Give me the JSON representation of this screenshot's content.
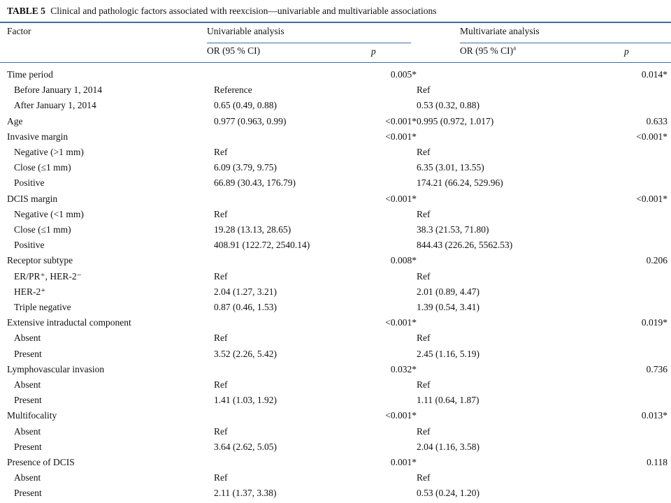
{
  "caption": {
    "label": "TABLE 5",
    "text": "Clinical and pathologic factors associated with reexcision—univariable and multivariable associations"
  },
  "headers": {
    "factor": "Factor",
    "univariable": "Univariable analysis",
    "multivariate": "Multivariate analysis",
    "or_ci": "OR (95 % CI)",
    "or_ci_mv": "OR (95 % CI)",
    "or_ci_mv_sup": "a",
    "p": "p"
  },
  "rows": [
    {
      "factor": "Time period",
      "sub": false,
      "u_or": "",
      "u_p": "0.005*",
      "m_or": "",
      "m_p": "0.014*"
    },
    {
      "factor": "Before January 1, 2014",
      "sub": true,
      "u_or": "Reference",
      "u_p": "",
      "m_or": "Ref",
      "m_p": ""
    },
    {
      "factor": "After January 1, 2014",
      "sub": true,
      "u_or": "0.65 (0.49, 0.88)",
      "u_p": "",
      "m_or": "0.53 (0.32, 0.88)",
      "m_p": ""
    },
    {
      "factor": "Age",
      "sub": false,
      "u_or": "0.977 (0.963, 0.99)",
      "u_p": "<0.001*",
      "m_or": "0.995 (0.972, 1.017)",
      "m_p": "0.633"
    },
    {
      "factor": "Invasive margin",
      "sub": false,
      "u_or": "",
      "u_p": "<0.001*",
      "m_or": "",
      "m_p": "<0.001*"
    },
    {
      "factor": "Negative (>1 mm)",
      "sub": true,
      "u_or": "Ref",
      "u_p": "",
      "m_or": "Ref",
      "m_p": ""
    },
    {
      "factor": "Close (≤1 mm)",
      "sub": true,
      "u_or": "6.09 (3.79, 9.75)",
      "u_p": "",
      "m_or": "6.35 (3.01, 13.55)",
      "m_p": ""
    },
    {
      "factor": "Positive",
      "sub": true,
      "u_or": "66.89 (30.43, 176.79)",
      "u_p": "",
      "m_or": "174.21 (66.24, 529.96)",
      "m_p": ""
    },
    {
      "factor": "DCIS margin",
      "sub": false,
      "u_or": "",
      "u_p": "<0.001*",
      "m_or": "",
      "m_p": "<0.001*"
    },
    {
      "factor": "Negative (<1 mm)",
      "sub": true,
      "u_or": "Ref",
      "u_p": "",
      "m_or": "Ref",
      "m_p": ""
    },
    {
      "factor": "Close (≤1 mm)",
      "sub": true,
      "u_or": "19.28 (13.13, 28.65)",
      "u_p": "",
      "m_or": "38.3 (21.53, 71.80)",
      "m_p": ""
    },
    {
      "factor": "Positive",
      "sub": true,
      "u_or": "408.91 (122.72, 2540.14)",
      "u_p": "",
      "m_or": "844.43 (226.26, 5562.53)",
      "m_p": ""
    },
    {
      "factor": "Receptor subtype",
      "sub": false,
      "u_or": "",
      "u_p": "0.008*",
      "m_or": "",
      "m_p": "0.206"
    },
    {
      "factor": "ER/PR⁺, HER-2⁻",
      "sub": true,
      "u_or": "Ref",
      "u_p": "",
      "m_or": "Ref",
      "m_p": ""
    },
    {
      "factor": "HER-2⁺",
      "sub": true,
      "u_or": "2.04 (1.27, 3.21)",
      "u_p": "",
      "m_or": "2.01 (0.89, 4.47)",
      "m_p": ""
    },
    {
      "factor": "Triple negative",
      "sub": true,
      "u_or": "0.87 (0.46, 1.53)",
      "u_p": "",
      "m_or": "1.39 (0.54, 3.41)",
      "m_p": ""
    },
    {
      "factor": "Extensive intraductal component",
      "sub": false,
      "u_or": "",
      "u_p": "<0.001*",
      "m_or": "",
      "m_p": "0.019*"
    },
    {
      "factor": "Absent",
      "sub": true,
      "u_or": "Ref",
      "u_p": "",
      "m_or": "Ref",
      "m_p": ""
    },
    {
      "factor": "Present",
      "sub": true,
      "u_or": "3.52 (2.26, 5.42)",
      "u_p": "",
      "m_or": "2.45 (1.16, 5.19)",
      "m_p": ""
    },
    {
      "factor": "Lymphovascular invasion",
      "sub": false,
      "u_or": "",
      "u_p": "0.032*",
      "m_or": "",
      "m_p": "0.736"
    },
    {
      "factor": "Absent",
      "sub": true,
      "u_or": "Ref",
      "u_p": "",
      "m_or": "Ref",
      "m_p": ""
    },
    {
      "factor": "Present",
      "sub": true,
      "u_or": "1.41 (1.03, 1.92)",
      "u_p": "",
      "m_or": "1.11 (0.64, 1.87)",
      "m_p": ""
    },
    {
      "factor": "Multifocality",
      "sub": false,
      "u_or": "",
      "u_p": "<0.001*",
      "m_or": "",
      "m_p": "0.013*"
    },
    {
      "factor": "Absent",
      "sub": true,
      "u_or": "Ref",
      "u_p": "",
      "m_or": "Ref",
      "m_p": ""
    },
    {
      "factor": "Present",
      "sub": true,
      "u_or": "3.64 (2.62, 5.05)",
      "u_p": "",
      "m_or": "2.04 (1.16, 3.58)",
      "m_p": ""
    },
    {
      "factor": "Presence of DCIS",
      "sub": false,
      "u_or": "",
      "u_p": "0.001*",
      "m_or": "",
      "m_p": "0.118"
    },
    {
      "factor": "Absent",
      "sub": true,
      "u_or": "Ref",
      "u_p": "",
      "m_or": "Ref",
      "m_p": ""
    },
    {
      "factor": "Present",
      "sub": true,
      "u_or": "2.11 (1.37, 3.38)",
      "u_p": "",
      "m_or": "0.53 (0.24, 1.20)",
      "m_p": ""
    }
  ],
  "colors": {
    "rule": "#3d6f9e",
    "text": "#111111"
  }
}
